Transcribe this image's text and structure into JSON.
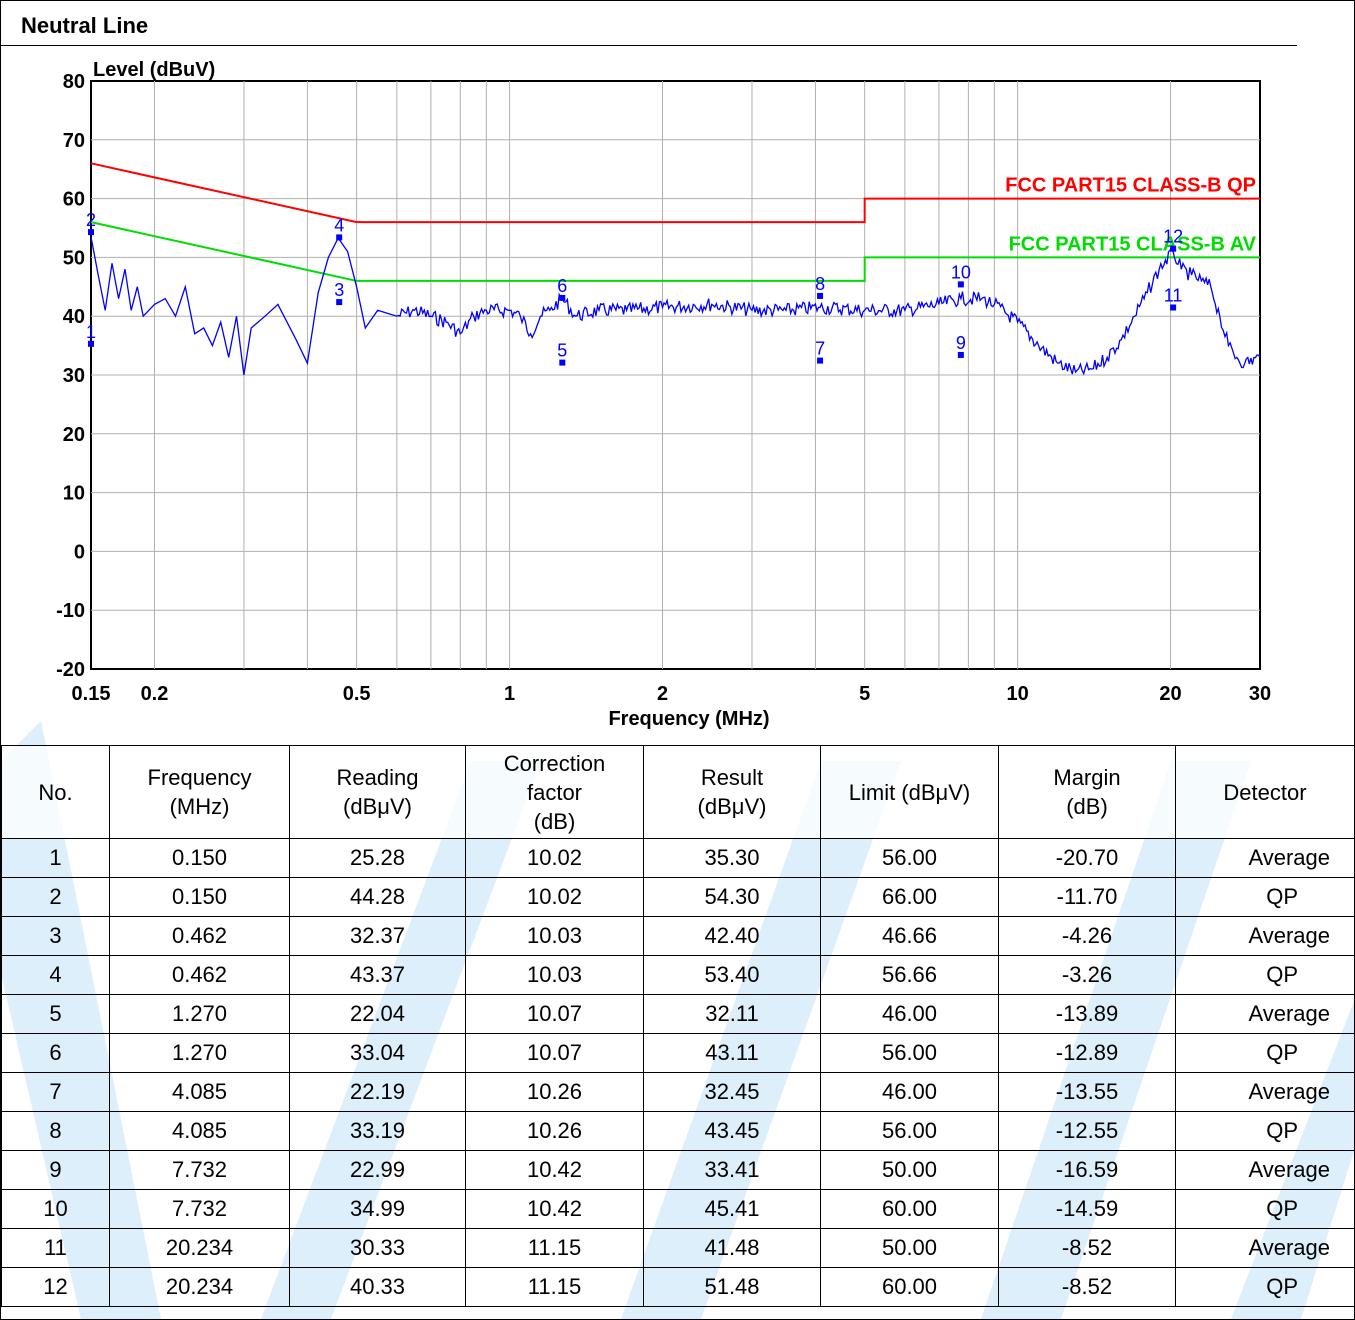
{
  "title": "Neutral Line",
  "chart_data": {
    "type": "line",
    "ylabel": "Level (dBuV)",
    "xlabel": "Frequency (MHz)",
    "x_scale": "log",
    "xlim": [
      0.15,
      30
    ],
    "ylim": [
      -20,
      80
    ],
    "grid": true,
    "x_ticks": [
      {
        "value": 0.15,
        "label": "0.15"
      },
      {
        "value": 0.2,
        "label": "0.2"
      },
      {
        "value": 0.5,
        "label": "0.5"
      },
      {
        "value": 1,
        "label": "1"
      },
      {
        "value": 2,
        "label": "2"
      },
      {
        "value": 5,
        "label": "5"
      },
      {
        "value": 10,
        "label": "10"
      },
      {
        "value": 20,
        "label": "20"
      },
      {
        "value": 30,
        "label": "30"
      }
    ],
    "y_ticks": [
      80,
      70,
      60,
      50,
      40,
      30,
      20,
      10,
      0,
      -10,
      -20
    ],
    "limit_lines": [
      {
        "name": "FCC PART15 CLASS-B QP",
        "color": "#ff0000",
        "points": [
          [
            0.15,
            66
          ],
          [
            0.5,
            56
          ],
          [
            5,
            56
          ],
          [
            5,
            60
          ],
          [
            30,
            60
          ]
        ]
      },
      {
        "name": "FCC PART15 CLASS-B AV",
        "color": "#00dd00",
        "points": [
          [
            0.15,
            56
          ],
          [
            0.5,
            46
          ],
          [
            5,
            46
          ],
          [
            5,
            50
          ],
          [
            30,
            50
          ]
        ]
      }
    ],
    "trace": {
      "color": "#0000ff",
      "points": [
        [
          0.15,
          53.5
        ],
        [
          0.155,
          47
        ],
        [
          0.16,
          41
        ],
        [
          0.165,
          49
        ],
        [
          0.17,
          43
        ],
        [
          0.175,
          48
        ],
        [
          0.18,
          41
        ],
        [
          0.185,
          45
        ],
        [
          0.19,
          40
        ],
        [
          0.2,
          42
        ],
        [
          0.21,
          43
        ],
        [
          0.22,
          40
        ],
        [
          0.23,
          45
        ],
        [
          0.24,
          37
        ],
        [
          0.25,
          38
        ],
        [
          0.26,
          35
        ],
        [
          0.27,
          39
        ],
        [
          0.28,
          33
        ],
        [
          0.29,
          40
        ],
        [
          0.3,
          30
        ],
        [
          0.31,
          38
        ],
        [
          0.33,
          40
        ],
        [
          0.35,
          42
        ],
        [
          0.38,
          36
        ],
        [
          0.4,
          32
        ],
        [
          0.42,
          44
        ],
        [
          0.44,
          50
        ],
        [
          0.46,
          53.3
        ],
        [
          0.48,
          51
        ],
        [
          0.5,
          45
        ],
        [
          0.52,
          38
        ],
        [
          0.55,
          41
        ],
        [
          0.6,
          40
        ],
        [
          0.65,
          41
        ],
        [
          0.7,
          40
        ],
        [
          0.75,
          39
        ],
        [
          0.8,
          37
        ],
        [
          0.85,
          40
        ],
        [
          0.9,
          41
        ],
        [
          1.0,
          41
        ],
        [
          1.05,
          40
        ],
        [
          1.1,
          37
        ],
        [
          1.15,
          40
        ],
        [
          1.2,
          41
        ],
        [
          1.27,
          43
        ],
        [
          1.35,
          40
        ],
        [
          1.5,
          41
        ],
        [
          1.7,
          41
        ],
        [
          2.0,
          41.5
        ],
        [
          2.5,
          42
        ],
        [
          3.0,
          41
        ],
        [
          3.5,
          41
        ],
        [
          4.085,
          41.5
        ],
        [
          5.0,
          41
        ],
        [
          6.0,
          41
        ],
        [
          7.0,
          42
        ],
        [
          7.732,
          43
        ],
        [
          8.5,
          43
        ],
        [
          9.0,
          42
        ],
        [
          10.0,
          39
        ],
        [
          11.0,
          35
        ],
        [
          12.0,
          32
        ],
        [
          13.0,
          30.5
        ],
        [
          14.0,
          31
        ],
        [
          15.0,
          33
        ],
        [
          16.0,
          36
        ],
        [
          17.0,
          40
        ],
        [
          18.0,
          44
        ],
        [
          19.0,
          48
        ],
        [
          20.234,
          51
        ],
        [
          21.0,
          48
        ],
        [
          22.0,
          47
        ],
        [
          23.0,
          46
        ],
        [
          24.0,
          45
        ],
        [
          25.0,
          40
        ],
        [
          26.0,
          35
        ],
        [
          27.0,
          33
        ],
        [
          28.0,
          32
        ],
        [
          30.0,
          33
        ]
      ]
    },
    "markers": [
      {
        "label": "1",
        "x": 0.15,
        "y": 35.3
      },
      {
        "label": "2",
        "x": 0.15,
        "y": 54.3
      },
      {
        "label": "3",
        "x": 0.462,
        "y": 42.4
      },
      {
        "label": "4",
        "x": 0.462,
        "y": 53.4
      },
      {
        "label": "5",
        "x": 1.27,
        "y": 32.11
      },
      {
        "label": "6",
        "x": 1.27,
        "y": 43.11
      },
      {
        "label": "7",
        "x": 4.085,
        "y": 32.45
      },
      {
        "label": "8",
        "x": 4.085,
        "y": 43.45
      },
      {
        "label": "9",
        "x": 7.732,
        "y": 33.41
      },
      {
        "label": "10",
        "x": 7.732,
        "y": 45.41
      },
      {
        "label": "11",
        "x": 20.234,
        "y": 41.48
      },
      {
        "label": "12",
        "x": 20.234,
        "y": 51.48
      }
    ]
  },
  "table": {
    "headers": [
      [
        "No."
      ],
      [
        "Frequency",
        "(MHz)"
      ],
      [
        "Reading",
        "(dBμV)"
      ],
      [
        "Correction",
        "factor",
        "(dB)"
      ],
      [
        "Result",
        "(dBμV)"
      ],
      [
        "Limit (dBμV)"
      ],
      [
        "Margin",
        "(dB)"
      ],
      [
        "Detector"
      ]
    ],
    "rows": [
      [
        "1",
        "0.150",
        "25.28",
        "10.02",
        "35.30",
        "56.00",
        "-20.70",
        "Average"
      ],
      [
        "2",
        "0.150",
        "44.28",
        "10.02",
        "54.30",
        "66.00",
        "-11.70",
        "QP"
      ],
      [
        "3",
        "0.462",
        "32.37",
        "10.03",
        "42.40",
        "46.66",
        "-4.26",
        "Average"
      ],
      [
        "4",
        "0.462",
        "43.37",
        "10.03",
        "53.40",
        "56.66",
        "-3.26",
        "QP"
      ],
      [
        "5",
        "1.270",
        "22.04",
        "10.07",
        "32.11",
        "46.00",
        "-13.89",
        "Average"
      ],
      [
        "6",
        "1.270",
        "33.04",
        "10.07",
        "43.11",
        "56.00",
        "-12.89",
        "QP"
      ],
      [
        "7",
        "4.085",
        "22.19",
        "10.26",
        "32.45",
        "46.00",
        "-13.55",
        "Average"
      ],
      [
        "8",
        "4.085",
        "33.19",
        "10.26",
        "43.45",
        "56.00",
        "-12.55",
        "QP"
      ],
      [
        "9",
        "7.732",
        "22.99",
        "10.42",
        "33.41",
        "50.00",
        "-16.59",
        "Average"
      ],
      [
        "10",
        "7.732",
        "34.99",
        "10.42",
        "45.41",
        "60.00",
        "-14.59",
        "QP"
      ],
      [
        "11",
        "20.234",
        "30.33",
        "11.15",
        "41.48",
        "50.00",
        "-8.52",
        "Average"
      ],
      [
        "12",
        "20.234",
        "40.33",
        "11.15",
        "51.48",
        "60.00",
        "-8.52",
        "QP"
      ]
    ]
  }
}
